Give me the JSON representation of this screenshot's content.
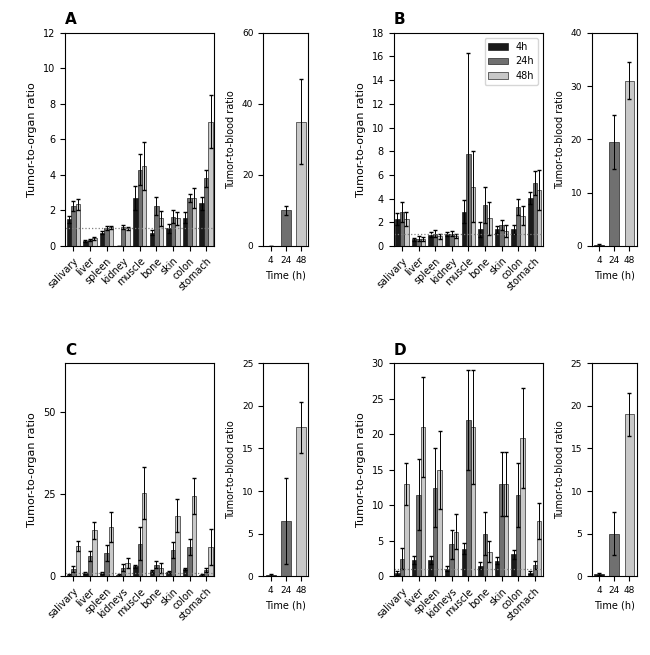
{
  "chart_data": [
    {
      "type": "bar",
      "title": "A",
      "y_label": "Tumor-to-organ ratio",
      "categories": [
        "salivary",
        "liver",
        "spleen",
        "kidney",
        "muscle",
        "bone",
        "skin",
        "colon",
        "stomach"
      ],
      "series": [
        {
          "name": "4h",
          "color": "#1a1a1a",
          "values": [
            1.5,
            0.28,
            0.75,
            0.0,
            2.7,
            0.75,
            1.0,
            1.6,
            2.4
          ],
          "errors": [
            0.2,
            0.05,
            0.1,
            0.0,
            0.65,
            0.12,
            0.25,
            0.3,
            0.35
          ]
        },
        {
          "name": "24h",
          "color": "#707070",
          "values": [
            2.25,
            0.35,
            1.0,
            1.05,
            4.3,
            2.25,
            1.65,
            2.7,
            3.8
          ],
          "errors": [
            0.28,
            0.06,
            0.12,
            0.12,
            0.85,
            0.5,
            0.38,
            0.25,
            0.5
          ]
        },
        {
          "name": "48h",
          "color": "#c8c8c8",
          "values": [
            2.35,
            0.42,
            1.05,
            1.0,
            4.5,
            1.55,
            1.55,
            2.7,
            7.0
          ],
          "errors": [
            0.3,
            0.08,
            0.1,
            0.08,
            1.35,
            0.42,
            0.38,
            0.55,
            1.5
          ]
        }
      ],
      "ylim": [
        0,
        12
      ],
      "yticks": [
        0,
        2,
        4,
        6,
        8,
        10,
        12
      ],
      "hline": 1.0,
      "inset": {
        "type": "bar",
        "categories": [
          "4",
          "24",
          "48"
        ],
        "values": [
          0.0,
          10.0,
          35.0
        ],
        "errors": [
          0.0,
          1.2,
          12.0
        ],
        "colors": [
          "#1a1a1a",
          "#707070",
          "#c8c8c8"
        ],
        "x_label": "Time (h)",
        "y_label": "Tumor-to-blood ratio",
        "ylim": [
          0,
          60
        ],
        "yticks": [
          0,
          20,
          40,
          60
        ]
      }
    },
    {
      "type": "bar",
      "title": "B",
      "y_label": "Tumor-to-organ ratio",
      "legend": "upper right",
      "categories": [
        "salivary",
        "liver",
        "spleen",
        "kidney",
        "muscle",
        "bone",
        "skin",
        "colon",
        "stomach"
      ],
      "series": [
        {
          "name": "4h",
          "color": "#1a1a1a",
          "values": [
            2.3,
            0.55,
            0.95,
            1.0,
            2.9,
            1.4,
            1.4,
            1.4,
            4.05
          ],
          "errors": [
            0.5,
            0.15,
            0.2,
            0.2,
            1.0,
            0.65,
            0.3,
            0.35,
            0.5
          ]
        },
        {
          "name": "24h",
          "color": "#707070",
          "values": [
            2.85,
            0.6,
            1.05,
            1.05,
            7.8,
            3.45,
            1.75,
            3.3,
            5.3
          ],
          "errors": [
            0.85,
            0.2,
            0.3,
            0.25,
            8.5,
            1.5,
            0.4,
            0.7,
            1.0
          ]
        },
        {
          "name": "48h",
          "color": "#c8c8c8",
          "values": [
            2.25,
            0.6,
            0.8,
            0.85,
            5.0,
            2.35,
            1.25,
            2.55,
            4.75
          ],
          "errors": [
            0.6,
            0.15,
            0.25,
            0.15,
            3.0,
            1.4,
            0.5,
            0.8,
            1.7
          ]
        }
      ],
      "ylim": [
        0,
        18
      ],
      "yticks": [
        0,
        2,
        4,
        6,
        8,
        10,
        12,
        14,
        16,
        18
      ],
      "hline": 1.0,
      "inset": {
        "type": "bar",
        "categories": [
          "4",
          "24",
          "48"
        ],
        "values": [
          0.2,
          19.5,
          31.0
        ],
        "errors": [
          0.15,
          5.0,
          3.5
        ],
        "colors": [
          "#1a1a1a",
          "#707070",
          "#c8c8c8"
        ],
        "x_label": "Time (h)",
        "y_label": "Tumor-to-blood ratio",
        "ylim": [
          0,
          40
        ],
        "yticks": [
          0,
          10,
          20,
          30,
          40
        ]
      }
    },
    {
      "type": "bar",
      "title": "C",
      "y_label": "Tumor-to-organ ratio",
      "categories": [
        "salivary",
        "liver",
        "spleen",
        "kidneys",
        "muscle",
        "bone",
        "skin",
        "colon",
        "stomach"
      ],
      "series": [
        {
          "name": "4h",
          "color": "#1a1a1a",
          "values": [
            0.45,
            1.1,
            1.1,
            0.45,
            3.1,
            1.5,
            1.4,
            2.2,
            0.45
          ],
          "errors": [
            0.25,
            0.25,
            0.25,
            0.2,
            0.5,
            0.4,
            0.3,
            0.4,
            0.18
          ]
        },
        {
          "name": "24h",
          "color": "#707070",
          "values": [
            2.2,
            6.3,
            7.1,
            2.7,
            10.0,
            3.6,
            8.0,
            9.0,
            1.9
          ],
          "errors": [
            1.0,
            1.5,
            2.5,
            1.0,
            5.0,
            1.0,
            2.5,
            2.5,
            0.7
          ]
        },
        {
          "name": "48h",
          "color": "#c8c8c8",
          "values": [
            9.2,
            14.0,
            15.0,
            4.2,
            25.5,
            2.65,
            18.5,
            24.5,
            9.0
          ],
          "errors": [
            1.5,
            2.5,
            4.5,
            1.5,
            8.0,
            1.5,
            5.0,
            5.5,
            5.5
          ]
        }
      ],
      "ylim": [
        0,
        65
      ],
      "yticks": [
        0,
        25,
        50
      ],
      "hline": 1.0,
      "inset": {
        "type": "bar",
        "categories": [
          "4",
          "24",
          "48"
        ],
        "values": [
          0.2,
          6.5,
          17.5
        ],
        "errors": [
          0.1,
          5.0,
          3.0
        ],
        "colors": [
          "#1a1a1a",
          "#707070",
          "#c8c8c8"
        ],
        "x_label": "Time (h)",
        "y_label": "Tumor-to-blood ratio",
        "ylim": [
          0,
          25
        ],
        "yticks": [
          0,
          5,
          10,
          15,
          20,
          25
        ]
      }
    },
    {
      "type": "bar",
      "title": "D",
      "y_label": "Tumor-to-organ ratio",
      "categories": [
        "salivary",
        "liver",
        "spleen",
        "kidneys",
        "muscle",
        "bone",
        "skin",
        "colon",
        "stomach"
      ],
      "series": [
        {
          "name": "4h",
          "color": "#1a1a1a",
          "values": [
            0.5,
            2.3,
            2.3,
            1.1,
            3.9,
            1.5,
            2.2,
            3.1,
            0.5
          ],
          "errors": [
            0.3,
            0.6,
            0.6,
            0.4,
            0.8,
            0.5,
            0.5,
            0.6,
            0.2
          ]
        },
        {
          "name": "24h",
          "color": "#707070",
          "values": [
            2.5,
            11.5,
            12.5,
            4.5,
            22.0,
            6.0,
            13.0,
            11.5,
            1.6
          ],
          "errors": [
            1.5,
            5.0,
            5.5,
            2.0,
            7.0,
            3.0,
            4.5,
            4.5,
            0.6
          ]
        },
        {
          "name": "48h",
          "color": "#c8c8c8",
          "values": [
            13.0,
            21.0,
            15.0,
            6.3,
            21.0,
            3.5,
            13.0,
            19.5,
            7.8
          ],
          "errors": [
            3.0,
            7.0,
            5.5,
            2.5,
            8.0,
            1.5,
            4.5,
            7.0,
            2.5
          ]
        }
      ],
      "ylim": [
        0,
        30
      ],
      "yticks": [
        0,
        5,
        10,
        15,
        20,
        25,
        30
      ],
      "hline": 1.0,
      "inset": {
        "type": "bar",
        "categories": [
          "4",
          "24",
          "48"
        ],
        "values": [
          0.3,
          5.0,
          19.0
        ],
        "errors": [
          0.1,
          2.5,
          2.5
        ],
        "colors": [
          "#1a1a1a",
          "#707070",
          "#c8c8c8"
        ],
        "x_label": "Time (h)",
        "y_label": "Tumor-to-blood ratio",
        "ylim": [
          0,
          25
        ],
        "yticks": [
          0,
          5,
          10,
          15,
          20,
          25
        ]
      }
    }
  ]
}
